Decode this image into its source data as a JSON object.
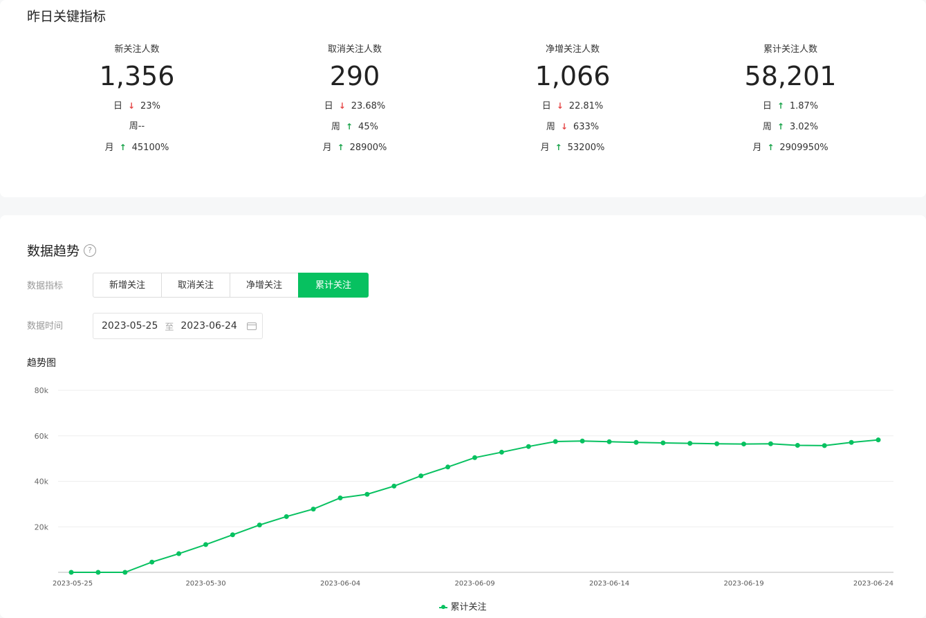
{
  "yesterday": {
    "title": "昨日关键指标",
    "metrics": [
      {
        "label": "新关注人数",
        "value": "1,356",
        "rows": [
          {
            "label": "日",
            "dir": "down",
            "pct": "23%"
          },
          {
            "label": "周--",
            "dir": "",
            "pct": ""
          },
          {
            "label": "月",
            "dir": "up",
            "pct": "45100%"
          }
        ]
      },
      {
        "label": "取消关注人数",
        "value": "290",
        "rows": [
          {
            "label": "日",
            "dir": "down",
            "pct": "23.68%"
          },
          {
            "label": "周",
            "dir": "up",
            "pct": "45%"
          },
          {
            "label": "月",
            "dir": "up",
            "pct": "28900%"
          }
        ]
      },
      {
        "label": "净增关注人数",
        "value": "1,066",
        "rows": [
          {
            "label": "日",
            "dir": "down",
            "pct": "22.81%"
          },
          {
            "label": "周",
            "dir": "down",
            "pct": "633%"
          },
          {
            "label": "月",
            "dir": "up",
            "pct": "53200%"
          }
        ]
      },
      {
        "label": "累计关注人数",
        "value": "58,201",
        "rows": [
          {
            "label": "日",
            "dir": "up",
            "pct": "1.87%"
          },
          {
            "label": "周",
            "dir": "up",
            "pct": "3.02%"
          },
          {
            "label": "月",
            "dir": "up",
            "pct": "2909950%"
          }
        ]
      }
    ]
  },
  "trend": {
    "title": "数据趋势",
    "help_icon": "question-circle-icon",
    "metric_label": "数据指标",
    "time_label": "数据时间",
    "tabs": [
      "新增关注",
      "取消关注",
      "净增关注",
      "累计关注"
    ],
    "active_tab": 3,
    "date_start": "2023-05-25",
    "date_sep": "至",
    "date_end": "2023-06-24",
    "calendar_icon": "calendar-icon",
    "chart_title": "趋势图"
  },
  "chart_data": {
    "type": "line",
    "color": "#07c160",
    "x": [
      "2023-05-25",
      "2023-05-26",
      "2023-05-27",
      "2023-05-28",
      "2023-05-29",
      "2023-05-30",
      "2023-05-31",
      "2023-06-01",
      "2023-06-02",
      "2023-06-03",
      "2023-06-04",
      "2023-06-05",
      "2023-06-06",
      "2023-06-07",
      "2023-06-08",
      "2023-06-09",
      "2023-06-10",
      "2023-06-11",
      "2023-06-12",
      "2023-06-13",
      "2023-06-14",
      "2023-06-15",
      "2023-06-16",
      "2023-06-17",
      "2023-06-18",
      "2023-06-19",
      "2023-06-20",
      "2023-06-21",
      "2023-06-22",
      "2023-06-23",
      "2023-06-24"
    ],
    "x_tick_labels": [
      "2023-05-25",
      "2023-05-30",
      "2023-06-04",
      "2023-06-09",
      "2023-06-14",
      "2023-06-19",
      "2023-06-24"
    ],
    "series": [
      {
        "name": "累计关注",
        "values": [
          0,
          0,
          0,
          4500,
          8200,
          12200,
          16500,
          20800,
          24500,
          27800,
          32700,
          34300,
          37900,
          42400,
          46300,
          50400,
          52800,
          55300,
          57500,
          57700,
          57400,
          57100,
          56900,
          56700,
          56500,
          56400,
          56500,
          55800,
          55700,
          57100,
          58201
        ]
      }
    ],
    "ylim": [
      0,
      80000
    ],
    "y_ticks": [
      20000,
      40000,
      60000,
      80000
    ],
    "y_tick_labels": [
      "20k",
      "40k",
      "60k",
      "80k"
    ],
    "grid": true,
    "legend_position": "bottom-center"
  }
}
